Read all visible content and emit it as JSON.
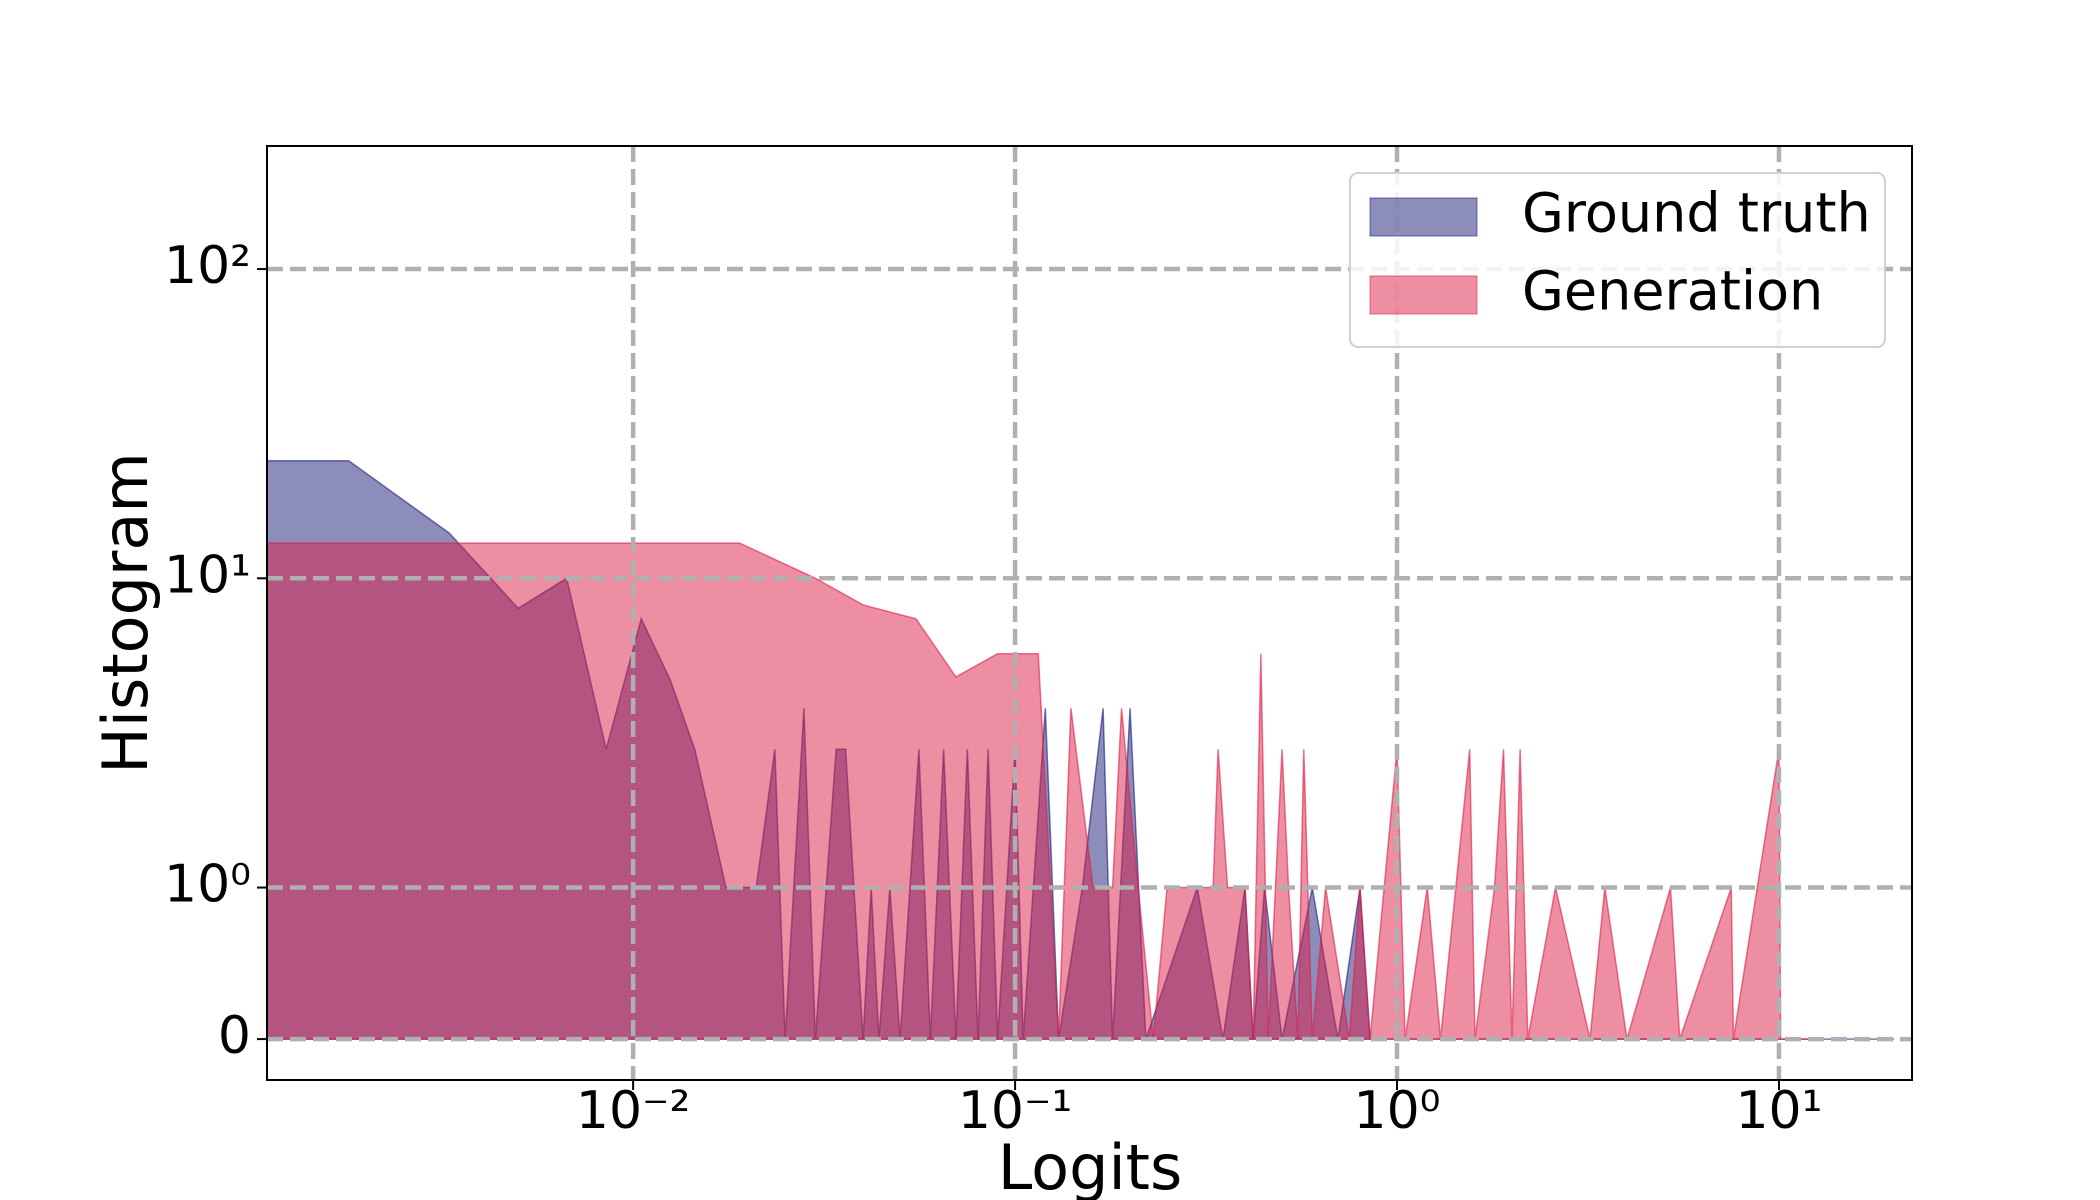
{
  "chart_data": {
    "type": "area",
    "xlabel": "Logits",
    "ylabel": "Histogram",
    "xscale": "log",
    "yscale": "symlog",
    "linthresh": 1,
    "xlim": [
      0.0011,
      22.3
    ],
    "ylim": [
      -0.27,
      250
    ],
    "xticks": [
      {
        "value": 0.01,
        "label": "10⁻²"
      },
      {
        "value": 0.1,
        "label": "10⁻¹"
      },
      {
        "value": 1,
        "label": "10⁰"
      },
      {
        "value": 10,
        "label": "10¹"
      }
    ],
    "yticks": [
      0,
      {
        "value": 1,
        "label": "10⁰"
      },
      {
        "value": 10,
        "label": "10¹"
      },
      {
        "value": 100,
        "label": "10²"
      }
    ],
    "grid": true,
    "legend": "upper right",
    "series": [
      {
        "name": "Ground truth",
        "color": "#1c1c7a",
        "x": [
          0.0011,
          0.0018,
          0.0033,
          0.005,
          0.0067,
          0.0085,
          0.0105,
          0.0125,
          0.0145,
          0.0175,
          0.021,
          0.0235,
          0.025,
          0.028,
          0.03,
          0.034,
          0.036,
          0.04,
          0.042,
          0.044,
          0.047,
          0.05,
          0.056,
          0.06,
          0.065,
          0.07,
          0.075,
          0.08,
          0.085,
          0.09,
          0.1,
          0.105,
          0.12,
          0.13,
          0.15,
          0.17,
          0.18,
          0.2,
          0.22,
          0.3,
          0.35,
          0.4,
          0.42,
          0.45,
          0.5,
          0.6,
          0.7,
          0.8,
          0.85,
          20
        ],
        "values": [
          24,
          24,
          14,
          8,
          10,
          2.8,
          7.4,
          4.7,
          2.8,
          1,
          1,
          2.8,
          0,
          3.8,
          0,
          2.8,
          2.8,
          0,
          1,
          0,
          1,
          0,
          2.8,
          0,
          2.8,
          0,
          2.8,
          0,
          2.8,
          0,
          2.8,
          0,
          3.8,
          0,
          1,
          3.8,
          0,
          3.8,
          0,
          1,
          0,
          1,
          0,
          1,
          0,
          1,
          0,
          1,
          0,
          0
        ]
      },
      {
        "name": "Generation",
        "color": "#dc1e46",
        "x": [
          0.0011,
          0.019,
          0.03,
          0.04,
          0.055,
          0.07,
          0.09,
          0.115,
          0.13,
          0.14,
          0.16,
          0.18,
          0.19,
          0.21,
          0.23,
          0.25,
          0.33,
          0.34,
          0.36,
          0.4,
          0.42,
          0.44,
          0.46,
          0.5,
          0.52,
          0.55,
          0.57,
          0.6,
          0.65,
          0.75,
          0.8,
          0.85,
          1.0,
          1.05,
          1.2,
          1.3,
          1.55,
          1.6,
          1.8,
          1.9,
          2.0,
          2.1,
          2.2,
          2.6,
          3.2,
          3.5,
          4.0,
          5.2,
          5.5,
          7.5,
          7.6,
          10,
          10.1,
          12
        ],
        "values": [
          13,
          13,
          10,
          8.2,
          7.4,
          4.8,
          5.7,
          5.7,
          0,
          3.8,
          1,
          1,
          3.8,
          1,
          0,
          1,
          1,
          2.8,
          1,
          1,
          0,
          5.7,
          0,
          2.8,
          1,
          0,
          2.8,
          0,
          1,
          0,
          1,
          0,
          2.8,
          0,
          1,
          0,
          2.8,
          0,
          1,
          2.8,
          0,
          2.8,
          0,
          1,
          0,
          1,
          0,
          1,
          0,
          1,
          0,
          2.8,
          0,
          0
        ]
      }
    ]
  }
}
